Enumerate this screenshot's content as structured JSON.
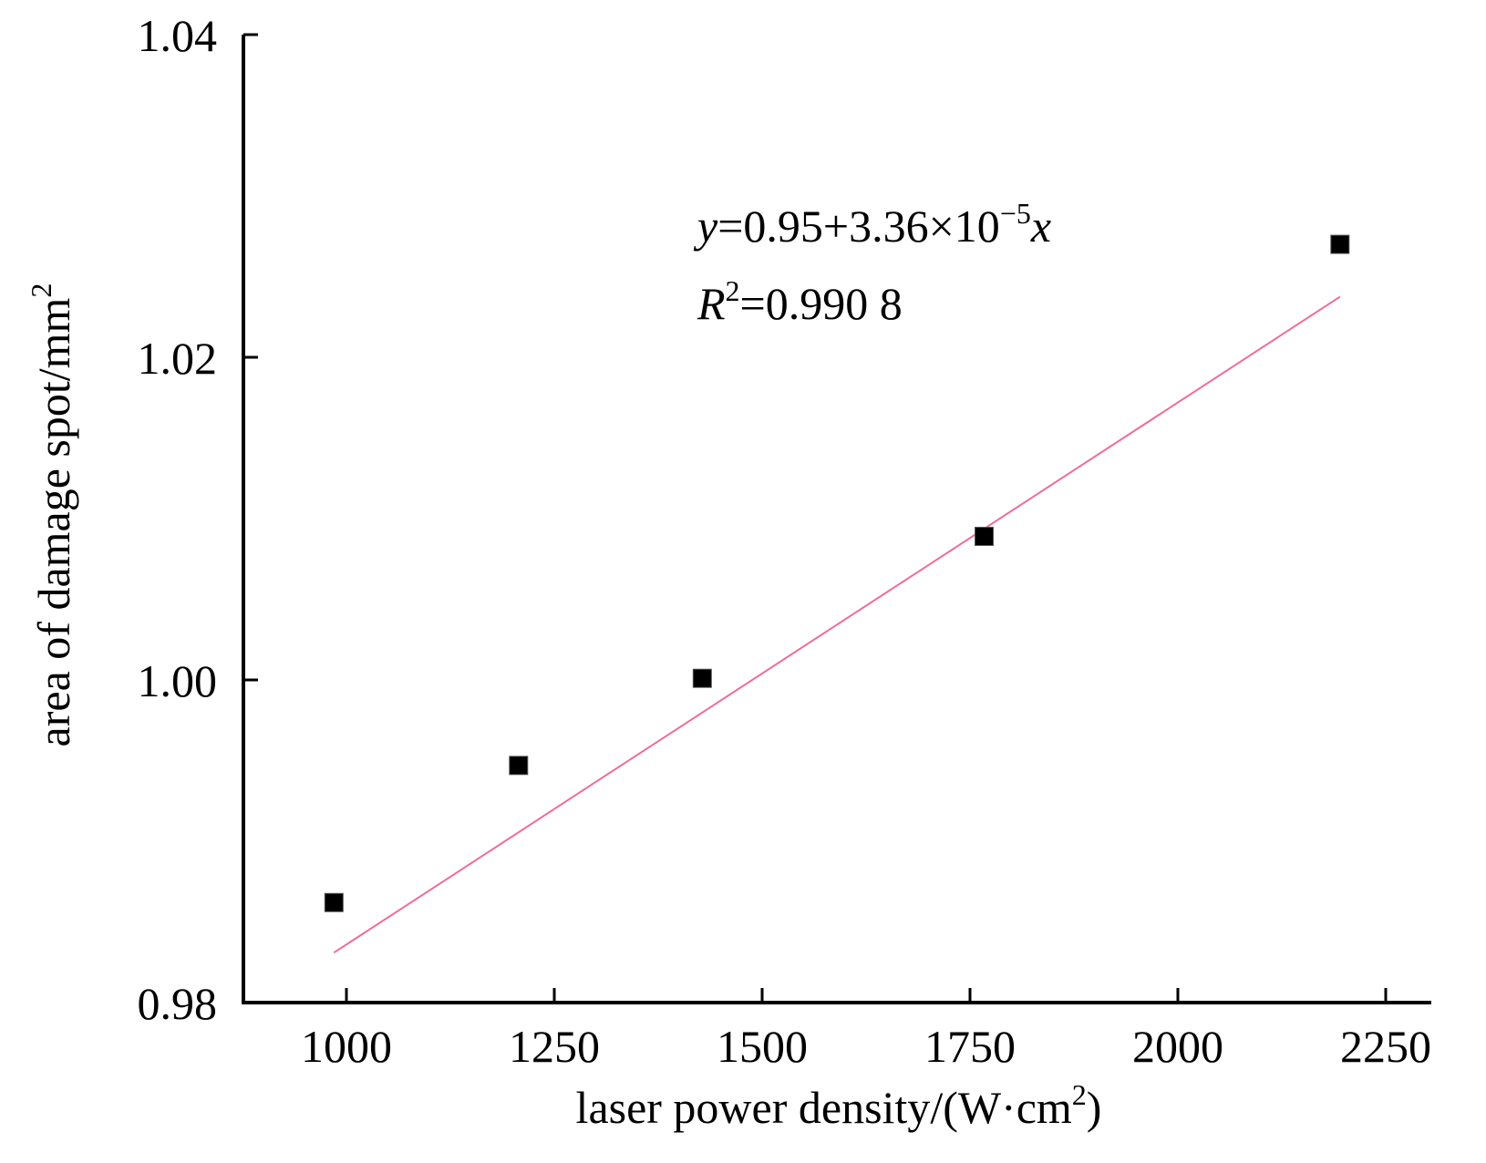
{
  "chart_data": {
    "type": "scatter",
    "title": "",
    "xlabel": "laser power density/(W·cm",
    "xlabel_sup": "2",
    "xlabel_end": ")",
    "ylabel": "area of damage spot/mm",
    "ylabel_sup": "2",
    "xlim": [
      900,
      2250
    ],
    "ylim": [
      0.98,
      1.04
    ],
    "xticks": [
      1000,
      1250,
      1500,
      1750,
      2000,
      2250
    ],
    "xtick_labels": [
      "1000",
      "1250",
      "1500",
      "1750",
      "2000",
      "2250"
    ],
    "yticks": [
      0.98,
      1.0,
      1.02,
      1.04
    ],
    "ytick_labels": [
      "0.98",
      "1.00",
      "1.02",
      "1.04"
    ],
    "grid": false,
    "legend": "none",
    "series": [
      {
        "x": [
          985,
          1207,
          1428,
          1767,
          2195
        ],
        "y": [
          0.9862,
          0.9947,
          1.0001,
          1.0089,
          1.027
        ],
        "marker": "square",
        "color": "#000000"
      }
    ],
    "fit_line": {
      "color": "#f06c9b",
      "x": [
        985,
        2195
      ],
      "intercept": 0.95,
      "slope": 3.36e-05
    },
    "annotation": {
      "line1_y": "y",
      "line1_eq": "=0.95+3.36×10",
      "line1_exp": "−5",
      "line1_x": "x",
      "line2_R": "R",
      "line2_sup": "2",
      "line2_val": "=0.990 8"
    }
  }
}
